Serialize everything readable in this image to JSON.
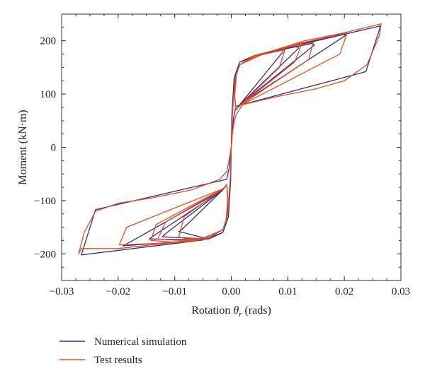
{
  "chart_data": {
    "type": "line",
    "title": "",
    "xlabel": {
      "prefix": "Rotation ",
      "symbol": "θ",
      "subscript": "r",
      "suffix": " (rads)"
    },
    "ylabel": "Moment (kN·m)",
    "xlim": [
      -0.03,
      0.03
    ],
    "ylim": [
      -250,
      250
    ],
    "x_ticks": [
      -0.03,
      -0.02,
      -0.01,
      0.0,
      0.01,
      0.02,
      0.03
    ],
    "x_tick_labels": [
      "−0.03",
      "−0.02",
      "−0.01",
      "0.00",
      "0.01",
      "0.02",
      "0.03"
    ],
    "y_ticks": [
      -200,
      -100,
      0,
      100,
      200
    ],
    "y_tick_labels": [
      "−200",
      "−100",
      "0",
      "100",
      "200"
    ],
    "grid": false,
    "legend_placement": "below",
    "series": [
      {
        "name": "Numerical simulation",
        "color": "#2e2e8f",
        "x": [
          0,
          0.0001,
          0.0005,
          0.0015,
          0.004,
          0.009,
          0.0092,
          0.0015,
          0.0008,
          0.0006,
          0.0008,
          0.0015,
          0.004,
          0.0115,
          0.0119,
          0.0015,
          0.0008,
          0.0006,
          0.0008,
          0.0015,
          0.005,
          0.0143,
          0.0147,
          0.0015,
          0.0008,
          0.0006,
          0.0008,
          0.0015,
          0.005,
          0.0198,
          0.0202,
          0.0015,
          0.0008,
          0.0006,
          0.0008,
          0.0015,
          0.005,
          0.0264,
          0.0238,
          0.0008,
          0.0004,
          0.0002,
          0.0001,
          0.0,
          -0.0001,
          -0.0005,
          -0.0015,
          -0.004,
          -0.0093,
          -0.0088,
          -0.0015,
          -0.0008,
          -0.0006,
          -0.0008,
          -0.0015,
          -0.004,
          -0.0122,
          -0.0116,
          -0.0015,
          -0.0008,
          -0.0006,
          -0.0008,
          -0.0015,
          -0.005,
          -0.0145,
          -0.014,
          -0.0015,
          -0.0008,
          -0.0006,
          -0.0008,
          -0.0015,
          -0.005,
          -0.0192,
          -0.0186,
          -0.0015,
          -0.0008,
          -0.0006,
          -0.0008,
          -0.0015,
          -0.005,
          -0.0265,
          -0.024,
          -0.0008,
          -0.0004,
          -0.0002,
          -0.0001,
          0.0
        ],
        "y": [
          0,
          60,
          130,
          160,
          170,
          183,
          180,
          80,
          70,
          100,
          140,
          160,
          172,
          190,
          186,
          80,
          70,
          100,
          140,
          160,
          175,
          195,
          192,
          80,
          70,
          100,
          140,
          160,
          175,
          213,
          210,
          80,
          70,
          100,
          140,
          160,
          175,
          228,
          142,
          77,
          55,
          30,
          10,
          0,
          -60,
          -130,
          -160,
          -172,
          -158,
          -155,
          -80,
          -70,
          -100,
          -140,
          -160,
          -172,
          -168,
          -162,
          -80,
          -70,
          -100,
          -140,
          -160,
          -174,
          -172,
          -168,
          -80,
          -70,
          -100,
          -140,
          -160,
          -174,
          -185,
          -182,
          -80,
          -70,
          -100,
          -140,
          -160,
          -174,
          -202,
          -117,
          -60,
          -40,
          -20,
          -8,
          0
        ]
      },
      {
        "name": "Test results",
        "color": "#e0501e",
        "x": [
          0,
          0.0002,
          0.0006,
          0.0015,
          0.004,
          0.008,
          0.0095,
          0.0085,
          0.0015,
          0.0008,
          0.0006,
          0.0009,
          0.0015,
          0.004,
          0.009,
          0.0125,
          0.0112,
          0.0015,
          0.0008,
          0.0006,
          0.0009,
          0.0015,
          0.005,
          0.01,
          0.0145,
          0.0137,
          0.0015,
          0.0008,
          0.0006,
          0.0009,
          0.0015,
          0.006,
          0.012,
          0.0205,
          0.0192,
          0.0015,
          0.0008,
          0.0006,
          0.0009,
          0.0015,
          0.006,
          0.013,
          0.02,
          0.0265,
          0.0262,
          0.024,
          0.02,
          0.015,
          0.008,
          0.002,
          0.0008,
          0.0004,
          0.0002,
          0.0001,
          0.0,
          -0.0002,
          -0.0006,
          -0.0015,
          -0.004,
          -0.008,
          -0.0093,
          -0.0083,
          -0.0015,
          -0.0008,
          -0.0006,
          -0.0009,
          -0.0015,
          -0.004,
          -0.009,
          -0.013,
          -0.0116,
          -0.0015,
          -0.0008,
          -0.0006,
          -0.0009,
          -0.0015,
          -0.005,
          -0.01,
          -0.0142,
          -0.0133,
          -0.0015,
          -0.0008,
          -0.0006,
          -0.0009,
          -0.0015,
          -0.006,
          -0.012,
          -0.0198,
          -0.0185,
          -0.0015,
          -0.0008,
          -0.0006,
          -0.0009,
          -0.0015,
          -0.006,
          -0.013,
          -0.02,
          -0.0265,
          -0.027,
          -0.026,
          -0.024,
          -0.02,
          -0.014,
          -0.007,
          -0.002,
          -0.0008,
          -0.0004,
          -0.0002,
          -0.0001,
          0.0
        ],
        "y": [
          0,
          60,
          125,
          155,
          170,
          180,
          183,
          150,
          78,
          70,
          95,
          135,
          155,
          172,
          185,
          195,
          160,
          78,
          70,
          95,
          135,
          155,
          175,
          188,
          197,
          165,
          78,
          70,
          95,
          135,
          155,
          177,
          195,
          215,
          175,
          78,
          70,
          95,
          135,
          155,
          177,
          200,
          215,
          232,
          210,
          155,
          125,
          110,
          95,
          80,
          60,
          40,
          25,
          10,
          0,
          -60,
          -125,
          -155,
          -170,
          -172,
          -168,
          -130,
          -78,
          -70,
          -95,
          -135,
          -155,
          -170,
          -175,
          -172,
          -140,
          -78,
          -70,
          -95,
          -135,
          -155,
          -172,
          -178,
          -175,
          -145,
          -78,
          -70,
          -95,
          -135,
          -155,
          -175,
          -180,
          -183,
          -150,
          -78,
          -70,
          -95,
          -135,
          -155,
          -175,
          -182,
          -190,
          -190,
          -200,
          -160,
          -120,
          -105,
          -95,
          -80,
          -60,
          -45,
          -25,
          -12,
          -5,
          0
        ]
      }
    ]
  }
}
